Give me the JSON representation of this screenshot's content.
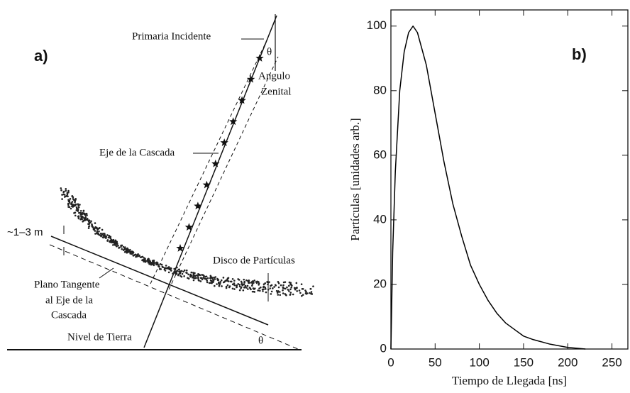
{
  "panel_a": {
    "label": "a)",
    "primary": "Primaria Incidente",
    "theta_top": "θ",
    "zenith": [
      "Angulo",
      "Zenital"
    ],
    "axis": "Eje de la Cascada",
    "thickness": "~1–3 m",
    "plane": [
      "Plano Tangente",
      "al Eje de la",
      "Cascada"
    ],
    "disk": "Disco de Partículas",
    "ground": "Nivel de Tierra",
    "theta_bottom": "θ"
  },
  "chart_data": {
    "type": "line",
    "panel_label": "b)",
    "xlabel": "Tiempo de Llegada [ns]",
    "ylabel": "Partículas [unidades arb.]",
    "x": [
      0,
      2,
      5,
      10,
      15,
      20,
      25,
      30,
      40,
      50,
      60,
      70,
      80,
      90,
      100,
      110,
      120,
      130,
      140,
      150,
      160,
      180,
      200,
      220
    ],
    "values": [
      0,
      30,
      55,
      80,
      92,
      98,
      100,
      98,
      88,
      73,
      58,
      45,
      35,
      26,
      20,
      15,
      11,
      8,
      6,
      4,
      3,
      1.5,
      0.5,
      0
    ],
    "color": "#000000",
    "xlim": [
      0,
      268
    ],
    "ylim": [
      0,
      105
    ],
    "xticks": [
      0,
      50,
      100,
      150,
      200,
      250
    ],
    "yticks": [
      0,
      20,
      40,
      60,
      80,
      100
    ]
  }
}
